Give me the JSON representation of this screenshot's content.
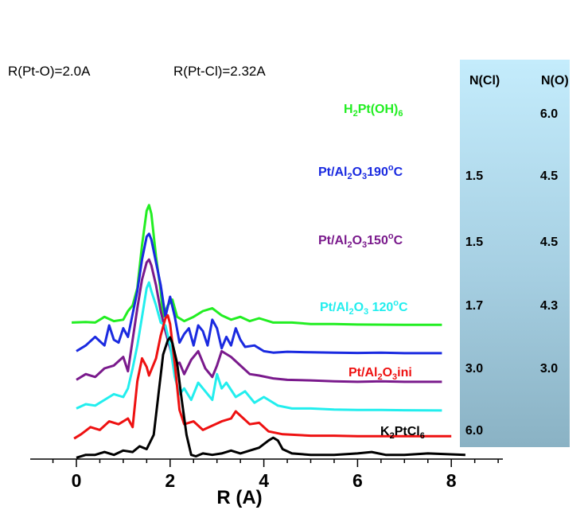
{
  "chart_data": {
    "type": "line",
    "xlabel": "R  (A)",
    "xlim": [
      -0.9,
      9.1
    ],
    "x_ticks": [
      "0",
      "2",
      "4",
      "6",
      "8"
    ],
    "annotations": [
      "R(Pt-O)=2.0A",
      "R(Pt-Cl)=2.32A"
    ],
    "table": {
      "headers": [
        "N(Cl)",
        "N(O)"
      ],
      "rows": [
        {
          "ncl": "",
          "no": "6.0"
        },
        {
          "ncl": "1.5",
          "no": "4.5"
        },
        {
          "ncl": "1.5",
          "no": "4.5"
        },
        {
          "ncl": "1.7",
          "no": "4.3"
        },
        {
          "ncl": "3.0",
          "no": "3.0"
        },
        {
          "ncl": "6.0",
          "no": ""
        }
      ]
    },
    "series": [
      {
        "name": "H2Pt(OH)6",
        "label": {
          "parts": [
            [
              "H",
              ""
            ],
            [
              "2",
              "sub"
            ],
            [
              "Pt(OH)",
              ""
            ],
            [
              "6",
              "sub"
            ]
          ]
        },
        "color": "#22ee22",
        "offset": 4.0,
        "x": [
          -0.1,
          0.2,
          0.4,
          0.6,
          0.8,
          1.0,
          1.1,
          1.2,
          1.3,
          1.4,
          1.5,
          1.55,
          1.6,
          1.7,
          1.8,
          1.85,
          1.95,
          2.05,
          2.15,
          2.3,
          2.5,
          2.7,
          2.9,
          3.1,
          3.3,
          3.5,
          3.7,
          3.9,
          4.2,
          4.6,
          5.0,
          5.5,
          6.0,
          7.0,
          7.8
        ],
        "y": [
          0.1,
          0.12,
          0.1,
          0.3,
          0.15,
          0.2,
          0.5,
          0.7,
          1.3,
          2.8,
          4.0,
          4.2,
          3.9,
          2.4,
          1.2,
          0.3,
          0.7,
          0.9,
          0.3,
          0.15,
          0.3,
          0.5,
          0.6,
          0.35,
          0.2,
          0.3,
          0.15,
          0.25,
          0.1,
          0.1,
          0.05,
          0.05,
          0.03,
          0.02,
          0.02
        ]
      },
      {
        "name": "Pt/Al2O3 190°C",
        "label": {
          "parts": [
            [
              "Pt/Al",
              ""
            ],
            [
              "2",
              "sub"
            ],
            [
              "O",
              ""
            ],
            [
              "3",
              "sub"
            ],
            [
              "190",
              ""
            ],
            [
              "o",
              "sup"
            ],
            [
              "C",
              ""
            ]
          ]
        },
        "color": "#1a2ae0",
        "offset": 3.0,
        "x": [
          0.0,
          0.2,
          0.4,
          0.6,
          0.7,
          0.8,
          0.9,
          1.0,
          1.1,
          1.2,
          1.3,
          1.4,
          1.5,
          1.55,
          1.6,
          1.7,
          1.8,
          1.9,
          2.0,
          2.1,
          2.2,
          2.3,
          2.4,
          2.5,
          2.6,
          2.7,
          2.8,
          2.9,
          3.0,
          3.1,
          3.2,
          3.3,
          3.4,
          3.5,
          3.6,
          3.8,
          4.0,
          4.2,
          4.5,
          5.0,
          5.5,
          6.0,
          6.5,
          7.0,
          7.8
        ],
        "y": [
          0.1,
          0.3,
          0.6,
          0.3,
          1.0,
          0.5,
          0.4,
          0.9,
          0.6,
          1.4,
          2.2,
          3.3,
          4.1,
          4.2,
          4.0,
          3.2,
          2.4,
          1.3,
          2.0,
          1.3,
          0.4,
          0.7,
          0.9,
          0.3,
          1.0,
          0.8,
          0.3,
          1.2,
          0.9,
          0.2,
          0.6,
          0.3,
          0.9,
          0.5,
          0.25,
          0.3,
          0.1,
          0.05,
          0.08,
          0.06,
          0.05,
          0.04,
          0.05,
          0.03,
          0.03
        ]
      },
      {
        "name": "Pt/Al2O3 150°C",
        "label": {
          "parts": [
            [
              "Pt/Al",
              ""
            ],
            [
              "2",
              "sub"
            ],
            [
              "O",
              ""
            ],
            [
              "3",
              "sub"
            ],
            [
              "150",
              ""
            ],
            [
              "o",
              "sup"
            ],
            [
              "C",
              ""
            ]
          ]
        },
        "color": "#7a1a8c",
        "offset": 2.0,
        "x": [
          0.0,
          0.2,
          0.4,
          0.6,
          0.8,
          1.0,
          1.1,
          1.2,
          1.3,
          1.4,
          1.5,
          1.55,
          1.6,
          1.7,
          1.8,
          1.9,
          2.0,
          2.1,
          2.2,
          2.3,
          2.45,
          2.6,
          2.75,
          2.9,
          3.0,
          3.1,
          3.3,
          3.5,
          3.7,
          3.9,
          4.2,
          4.5,
          5.0,
          5.5,
          6.0,
          6.5,
          7.0,
          7.8
        ],
        "y": [
          0.1,
          0.3,
          0.2,
          0.5,
          0.6,
          0.9,
          0.4,
          1.5,
          2.6,
          3.6,
          4.2,
          4.3,
          4.1,
          3.4,
          2.5,
          1.8,
          1.2,
          0.6,
          0.7,
          0.3,
          0.8,
          1.1,
          0.5,
          0.2,
          0.6,
          1.1,
          0.9,
          0.6,
          0.3,
          0.25,
          0.15,
          0.1,
          0.08,
          0.05,
          0.03,
          0.05,
          0.03,
          0.03
        ]
      },
      {
        "name": "Pt/Al2O3 120°C",
        "label": {
          "parts": [
            [
              "Pt/Al",
              ""
            ],
            [
              "2",
              "sub"
            ],
            [
              "O",
              ""
            ],
            [
              "3",
              "sub"
            ],
            [
              " 120",
              ""
            ],
            [
              "o",
              "sup"
            ],
            [
              "C",
              ""
            ]
          ]
        },
        "color": "#22eeee",
        "offset": 1.0,
        "x": [
          0.0,
          0.2,
          0.4,
          0.6,
          0.8,
          1.0,
          1.1,
          1.2,
          1.3,
          1.4,
          1.5,
          1.55,
          1.6,
          1.7,
          1.8,
          1.9,
          2.0,
          2.1,
          2.2,
          2.3,
          2.45,
          2.6,
          2.75,
          2.9,
          3.0,
          3.1,
          3.2,
          3.4,
          3.6,
          3.8,
          4.0,
          4.3,
          4.6,
          5.0,
          5.5,
          6.0,
          6.5,
          7.0,
          7.8
        ],
        "y": [
          0.1,
          0.25,
          0.2,
          0.4,
          0.6,
          0.5,
          0.8,
          1.5,
          2.3,
          3.3,
          4.3,
          4.5,
          4.2,
          3.7,
          3.1,
          3.0,
          2.3,
          1.2,
          0.6,
          0.8,
          0.4,
          1.0,
          0.7,
          0.4,
          1.3,
          0.8,
          1.0,
          0.5,
          0.7,
          0.3,
          0.5,
          0.2,
          0.1,
          0.1,
          0.06,
          0.05,
          0.05,
          0.04,
          0.03
        ]
      },
      {
        "name": "Pt/Al2O3 ini",
        "label": {
          "parts": [
            [
              "Pt/Al",
              ""
            ],
            [
              "2",
              "sub"
            ],
            [
              "O",
              ""
            ],
            [
              "3",
              "sub"
            ],
            [
              "ini",
              ""
            ]
          ]
        },
        "color": "#ee1111",
        "offset": 0.05,
        "x": [
          -0.05,
          0.1,
          0.3,
          0.5,
          0.7,
          0.9,
          1.1,
          1.2,
          1.3,
          1.4,
          1.5,
          1.55,
          1.6,
          1.7,
          1.8,
          1.9,
          1.95,
          2.0,
          2.1,
          2.2,
          2.3,
          2.5,
          2.7,
          2.9,
          3.1,
          3.3,
          3.4,
          3.5,
          3.7,
          3.9,
          4.1,
          4.4,
          5.0,
          5.5,
          6.0,
          6.5,
          7.0,
          8.0
        ],
        "y": [
          0.0,
          0.15,
          0.4,
          0.3,
          0.6,
          0.5,
          0.7,
          0.4,
          2.0,
          2.8,
          2.5,
          2.2,
          2.4,
          2.8,
          3.6,
          4.2,
          4.3,
          4.0,
          2.6,
          1.0,
          0.5,
          0.6,
          0.3,
          0.45,
          0.6,
          0.7,
          0.95,
          0.8,
          0.5,
          0.55,
          0.25,
          0.15,
          0.1,
          0.1,
          0.08,
          0.08,
          0.08,
          0.08
        ]
      },
      {
        "name": "K2PtCl6",
        "label": {
          "parts": [
            [
              "K",
              ""
            ],
            [
              "2",
              "sub"
            ],
            [
              "PtCl",
              ""
            ],
            [
              "6",
              "sub"
            ]
          ]
        },
        "color": "#000000",
        "offset": -0.62,
        "x": [
          0.0,
          0.2,
          0.4,
          0.6,
          0.8,
          1.0,
          1.2,
          1.35,
          1.5,
          1.65,
          1.75,
          1.85,
          1.95,
          2.0,
          2.05,
          2.15,
          2.25,
          2.35,
          2.45,
          2.55,
          2.7,
          2.9,
          3.1,
          3.3,
          3.5,
          3.7,
          3.9,
          4.1,
          4.2,
          4.3,
          4.4,
          4.6,
          5.0,
          5.5,
          6.0,
          6.3,
          6.6,
          7.0,
          7.5,
          8.3
        ],
        "y": [
          0.0,
          0.1,
          0.1,
          0.2,
          0.1,
          0.25,
          0.2,
          0.4,
          0.3,
          0.8,
          2.2,
          3.6,
          4.1,
          4.2,
          4.0,
          3.3,
          2.0,
          0.8,
          0.1,
          0.05,
          0.15,
          0.1,
          0.15,
          0.25,
          0.15,
          0.25,
          0.35,
          0.6,
          0.7,
          0.6,
          0.3,
          0.15,
          0.1,
          0.1,
          0.15,
          0.2,
          0.1,
          0.1,
          0.15,
          0.1
        ]
      }
    ]
  }
}
